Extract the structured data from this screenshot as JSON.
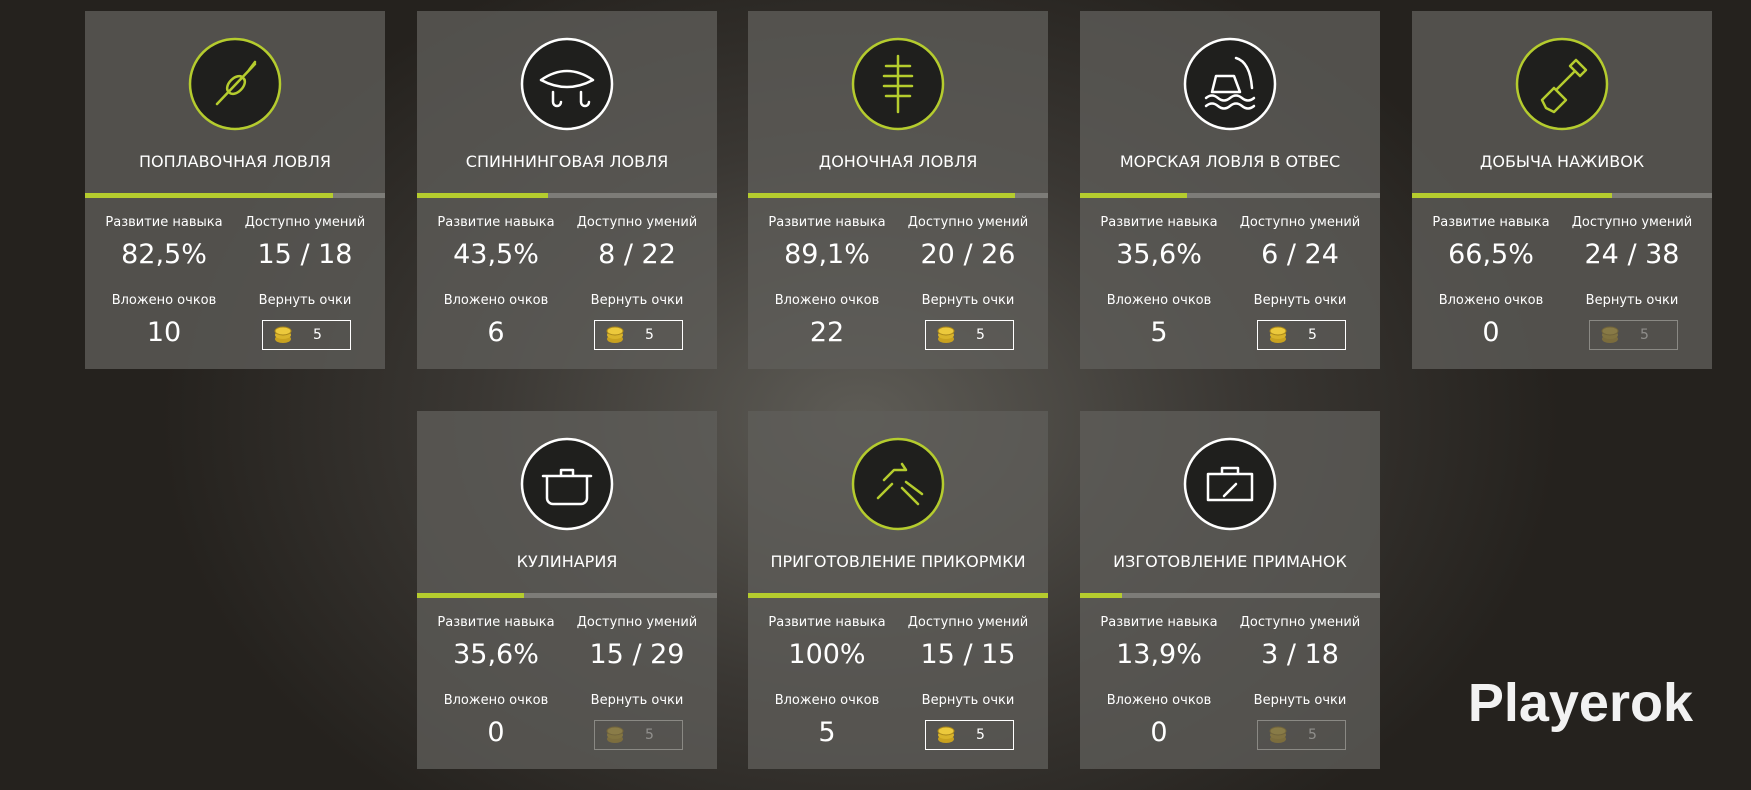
{
  "labels": {
    "progress": "Развитие навыка",
    "skills": "Доступно умений",
    "invested": "Вложено очков",
    "refund": "Вернуть очки"
  },
  "cards": [
    {
      "title": "ПОПЛАВОЧНАЯ ЛОВЛЯ",
      "progress": 82.5,
      "progress_label": "82,5%",
      "skills": "15 / 18",
      "invested": 10,
      "refund": 5,
      "refund_enabled": true,
      "accent": "#b5cc2e"
    },
    {
      "title": "СПИННИНГОВАЯ ЛОВЛЯ",
      "progress": 43.5,
      "progress_label": "43,5%",
      "skills": "8 / 22",
      "invested": 6,
      "refund": 5,
      "refund_enabled": true,
      "accent": "#ffffff"
    },
    {
      "title": "ДОНОЧНАЯ ЛОВЛЯ",
      "progress": 89.1,
      "progress_label": "89,1%",
      "skills": "20 / 26",
      "invested": 22,
      "refund": 5,
      "refund_enabled": true,
      "accent": "#b5cc2e"
    },
    {
      "title": "МОРСКАЯ ЛОВЛЯ В ОТВЕС",
      "progress": 35.6,
      "progress_label": "35,6%",
      "skills": "6 / 24",
      "invested": 5,
      "refund": 5,
      "refund_enabled": true,
      "accent": "#ffffff"
    },
    {
      "title": "ДОБЫЧА НАЖИВОК",
      "progress": 66.5,
      "progress_label": "66,5%",
      "skills": "24 / 38",
      "invested": 0,
      "refund": 5,
      "refund_enabled": false,
      "accent": "#b5cc2e"
    },
    {
      "title": "КУЛИНАРИЯ",
      "progress": 35.6,
      "progress_label": "35,6%",
      "skills": "15 / 29",
      "invested": 0,
      "refund": 5,
      "refund_enabled": false,
      "accent": "#ffffff"
    },
    {
      "title": "ПРИГОТОВЛЕНИЕ ПРИКОРМКИ",
      "progress": 100,
      "progress_label": "100%",
      "skills": "15 / 15",
      "invested": 5,
      "refund": 5,
      "refund_enabled": true,
      "accent": "#b5cc2e"
    },
    {
      "title": "ИЗГОТОВЛЕНИЕ ПРИМАНОК",
      "progress": 13.9,
      "progress_label": "13,9%",
      "skills": "3 / 18",
      "invested": 0,
      "refund": 5,
      "refund_enabled": false,
      "accent": "#ffffff"
    }
  ],
  "watermark": "Playerok"
}
